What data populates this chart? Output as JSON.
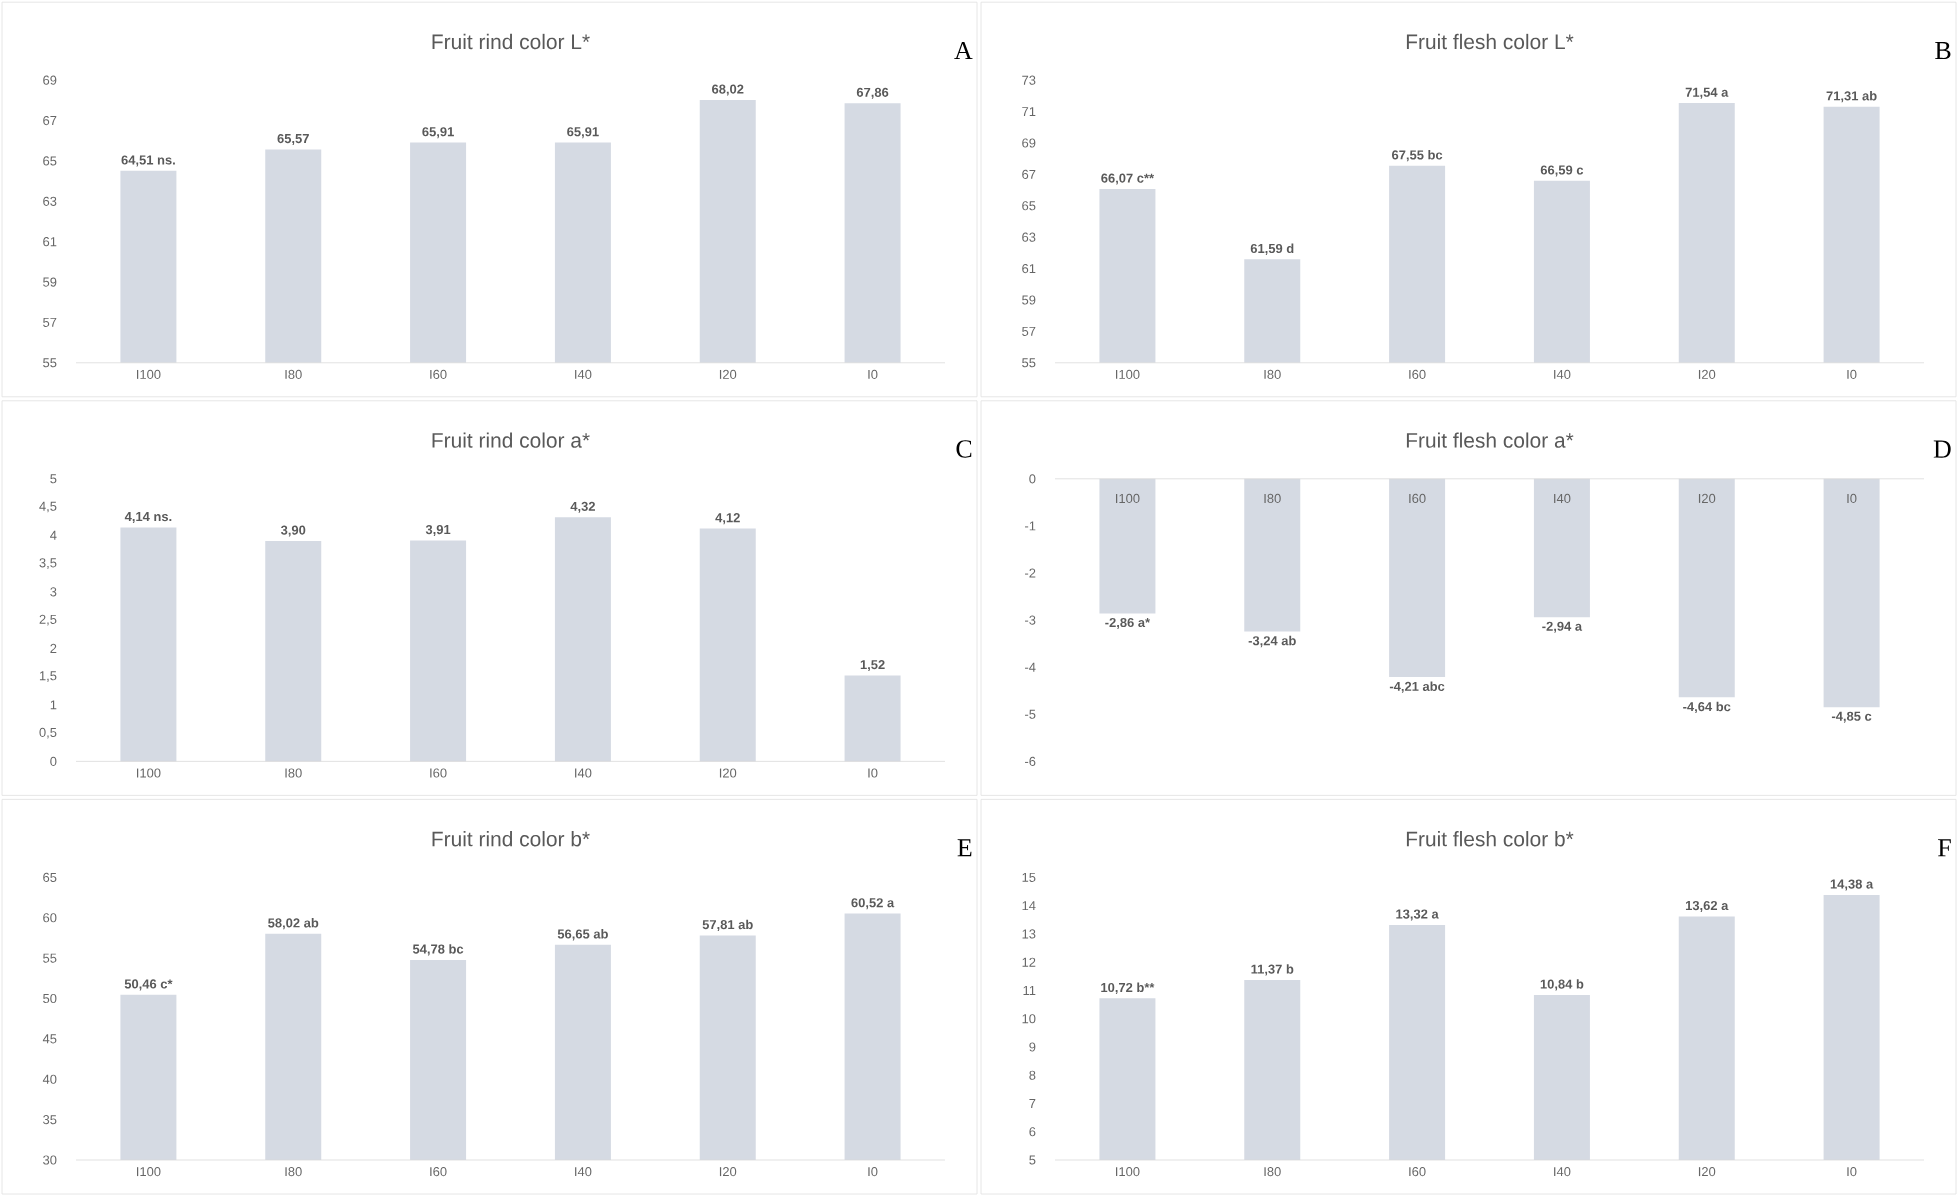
{
  "chart_data": [
    {
      "type": "bar",
      "title": "Fruit rind color L*",
      "categories": [
        "I100",
        "I80",
        "I60",
        "I40",
        "I20",
        "I0"
      ],
      "values": [
        64.51,
        65.57,
        65.91,
        65.91,
        68.02,
        67.86
      ],
      "value_labels": [
        "64,51 ns.",
        "65,57",
        "65,91",
        "65,91",
        "68,02",
        "67,86"
      ],
      "color": "#d5dae3",
      "ylim": [
        55,
        69
      ],
      "yticks": [
        55,
        57,
        59,
        61,
        63,
        65,
        67,
        69
      ],
      "annotations": [
        "A"
      ]
    },
    {
      "type": "bar",
      "title": "Fruit flesh color L*",
      "categories": [
        "I100",
        "I80",
        "I60",
        "I40",
        "I20",
        "I0"
      ],
      "values": [
        66.07,
        61.59,
        67.55,
        66.59,
        71.54,
        71.31
      ],
      "value_labels": [
        "66,07 c**",
        "61,59 d",
        "67,55 bc",
        "66,59 c",
        "71,54 a",
        "71,31 ab"
      ],
      "color": "#d5dae3",
      "ylim": [
        55,
        73
      ],
      "yticks": [
        55,
        57,
        59,
        61,
        63,
        65,
        67,
        69,
        71,
        73
      ],
      "annotations": [
        "B"
      ]
    },
    {
      "type": "bar",
      "title": "Fruit rind color a*",
      "categories": [
        "I100",
        "I80",
        "I60",
        "I40",
        "I20",
        "I0"
      ],
      "values": [
        4.14,
        3.9,
        3.91,
        4.32,
        4.12,
        1.52
      ],
      "value_labels": [
        "4,14 ns.",
        "3,90",
        "3,91",
        "4,32",
        "4,12",
        "1,52"
      ],
      "color": "#d5dae3",
      "ylim": [
        0,
        5
      ],
      "yticks": [
        0,
        {
          "value": 0.5,
          "label": "0,5"
        },
        1,
        {
          "value": 1.5,
          "label": "1,5"
        },
        2,
        {
          "value": 2.5,
          "label": "2,5"
        },
        3,
        {
          "value": 3.5,
          "label": "3,5"
        },
        4,
        {
          "value": 4.5,
          "label": "4,5"
        },
        5
      ],
      "annotations": [
        "C"
      ]
    },
    {
      "type": "bar",
      "title": "Fruit flesh color a*",
      "categories": [
        "I100",
        "I80",
        "I60",
        "I40",
        "I20",
        "I0"
      ],
      "values": [
        -2.86,
        -3.24,
        -4.21,
        -2.94,
        -4.64,
        -4.85
      ],
      "value_labels": [
        "-2,86 a*",
        "-3,24 ab",
        "-4,21 abc",
        "-2,94 a",
        "-4,64 bc",
        "-4,85 c"
      ],
      "color": "#d5dae3",
      "ylim": [
        -6,
        0
      ],
      "yticks": [
        -6,
        -5,
        -4,
        -3,
        -2,
        -1,
        0
      ],
      "annotations": [
        "D"
      ]
    },
    {
      "type": "bar",
      "title": "Fruit rind color b*",
      "categories": [
        "I100",
        "I80",
        "I60",
        "I40",
        "I20",
        "I0"
      ],
      "values": [
        50.46,
        58.02,
        54.78,
        56.65,
        57.81,
        60.52
      ],
      "value_labels": [
        "50,46 c*",
        "58,02 ab",
        "54,78 bc",
        "56,65 ab",
        "57,81 ab",
        "60,52 a"
      ],
      "color": "#d5dae3",
      "ylim": [
        30,
        65
      ],
      "yticks": [
        30,
        35,
        40,
        45,
        50,
        55,
        60,
        65
      ],
      "annotations": [
        "E"
      ]
    },
    {
      "type": "bar",
      "title": "Fruit flesh color b*",
      "categories": [
        "I100",
        "I80",
        "I60",
        "I40",
        "I20",
        "I0"
      ],
      "values": [
        10.72,
        11.37,
        13.32,
        10.84,
        13.62,
        14.38
      ],
      "value_labels": [
        "10,72 b**",
        "11,37 b",
        "13,32 a",
        "10,84 b",
        "13,62 a",
        "14,38 a"
      ],
      "color": "#d5dae3",
      "ylim": [
        5,
        15
      ],
      "yticks": [
        5,
        6,
        7,
        8,
        9,
        10,
        11,
        12,
        13,
        14,
        15
      ],
      "annotations": [
        "F"
      ]
    }
  ]
}
